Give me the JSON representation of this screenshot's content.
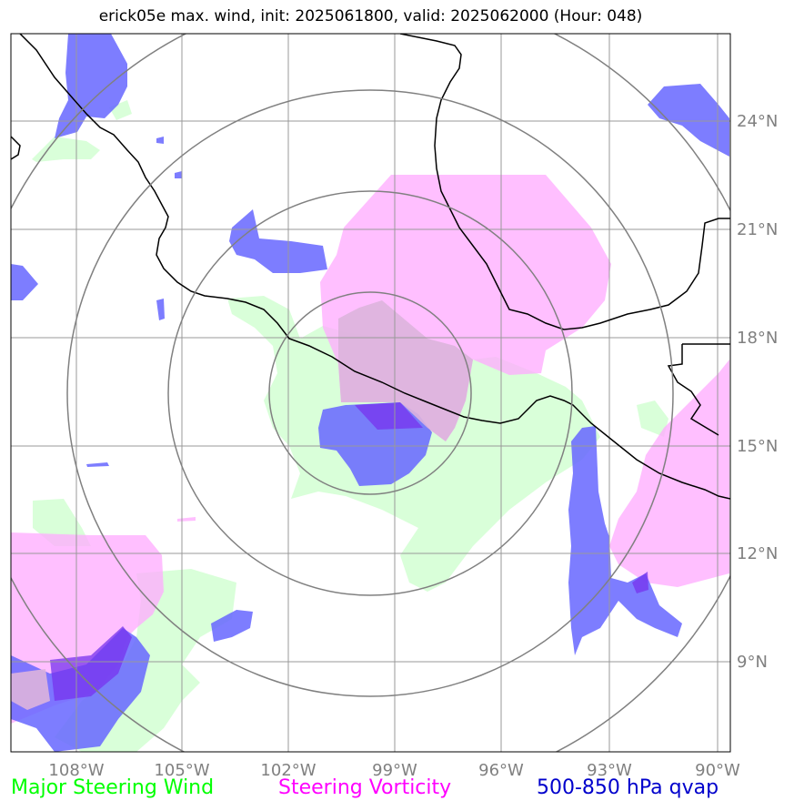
{
  "title": "erick05e max. wind, init: 2025061800, valid: 2025062000 (Hour: 048)",
  "legend": {
    "green": "Major Steering Wind",
    "magenta": "Steering Vorticity",
    "blue": "500-850 hPa qvap"
  },
  "colors": {
    "wind": "#ccffcc",
    "vorticity": "#ffaaff",
    "qvap": "#6666ff",
    "coast": "#000000",
    "grid": "#999999",
    "rings": "#808080"
  },
  "axes": {
    "lon_labels": [
      "108°W",
      "105°W",
      "102°W",
      "99°W",
      "96°W",
      "93°W",
      "90°W"
    ],
    "lat_labels": [
      "24°N",
      "21°N",
      "18°N",
      "15°N",
      "12°N",
      "9°N"
    ],
    "lon_range": [
      -109.9,
      -89.8
    ],
    "lat_range": [
      6.5,
      26.5
    ]
  },
  "center": {
    "lon": -99.9,
    "lat": 16.5
  }
}
